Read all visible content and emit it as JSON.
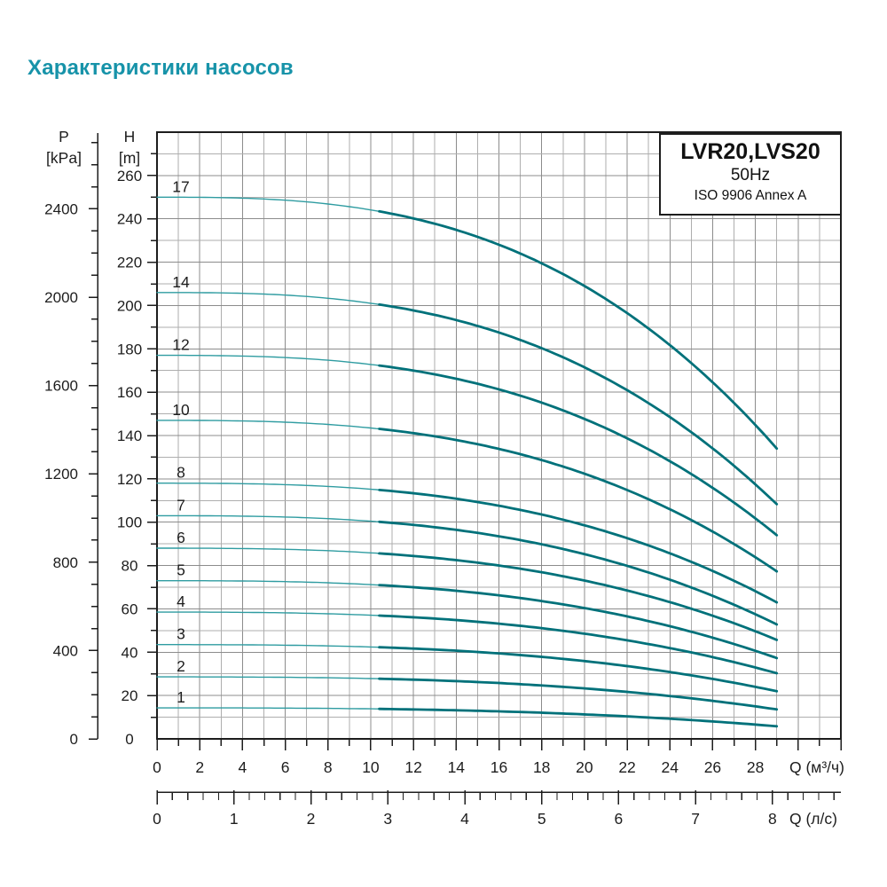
{
  "page_title": "Характеристики насосов",
  "info_box": {
    "model": "LVR20,LVS20",
    "frequency": "50Hz",
    "standard": "ISO 9906 Annex A"
  },
  "chart_data": {
    "type": "line",
    "title": "Pump performance curves LVR20, LVS20 at 50Hz",
    "y_axis_head": {
      "name": "H",
      "unit": "[m]",
      "labeled_ticks": [
        0,
        20,
        40,
        60,
        80,
        100,
        120,
        140,
        160,
        180,
        200,
        220,
        240,
        260
      ],
      "minor_step": 10,
      "axis_max": 280
    },
    "y_axis_pressure": {
      "name": "P",
      "unit": "[kPa]",
      "labeled_ticks": [
        0,
        400,
        800,
        1200,
        1600,
        2000,
        2400
      ],
      "minor_step": 100,
      "axis_max": 2700,
      "kpa_per_m": 9.81
    },
    "x_axis_m3h": {
      "label": "Q (м³/ч)",
      "labeled_ticks": [
        0,
        2,
        4,
        6,
        8,
        10,
        12,
        14,
        16,
        18,
        20,
        22,
        24,
        26,
        28
      ],
      "minor_step": 1,
      "axis_max": 32
    },
    "x_axis_ls": {
      "label": "Q (л/с)",
      "labeled_ticks": [
        0,
        1,
        2,
        3,
        4,
        5,
        6,
        7,
        8
      ],
      "minor_step": 0.2,
      "axis_max": 8.88,
      "m3h_per_unit": 3.6
    },
    "curves": {
      "q_start": 0,
      "q_end": 29,
      "thick_from_q": 10.4,
      "shape_exponent": 2.8,
      "series": [
        {
          "label": "1",
          "h_start": 14.3,
          "h_end": 5.8
        },
        {
          "label": "2",
          "h_start": 28.6,
          "h_end": 13.6
        },
        {
          "label": "3",
          "h_start": 43.5,
          "h_end": 22.0
        },
        {
          "label": "4",
          "h_start": 58.5,
          "h_end": 30.3
        },
        {
          "label": "5",
          "h_start": 73.0,
          "h_end": 37.3
        },
        {
          "label": "6",
          "h_start": 88.0,
          "h_end": 45.7
        },
        {
          "label": "7",
          "h_start": 103.0,
          "h_end": 52.8
        },
        {
          "label": "8",
          "h_start": 118.0,
          "h_end": 63.0
        },
        {
          "label": "10",
          "h_start": 147.0,
          "h_end": 77.3
        },
        {
          "label": "12",
          "h_start": 177.0,
          "h_end": 94.0
        },
        {
          "label": "14",
          "h_start": 206.0,
          "h_end": 108.3
        },
        {
          "label": "17",
          "h_start": 250.0,
          "h_end": 134.0
        }
      ]
    },
    "colors": {
      "title": "#1793a9",
      "curve_thin": "#2f9ca1",
      "curve_thick": "#00717a",
      "grid_major": "#8c8c8c",
      "grid_minor": "#aeaeae",
      "axis_line": "#1d1d1d",
      "text": "#1d1d1d"
    }
  }
}
